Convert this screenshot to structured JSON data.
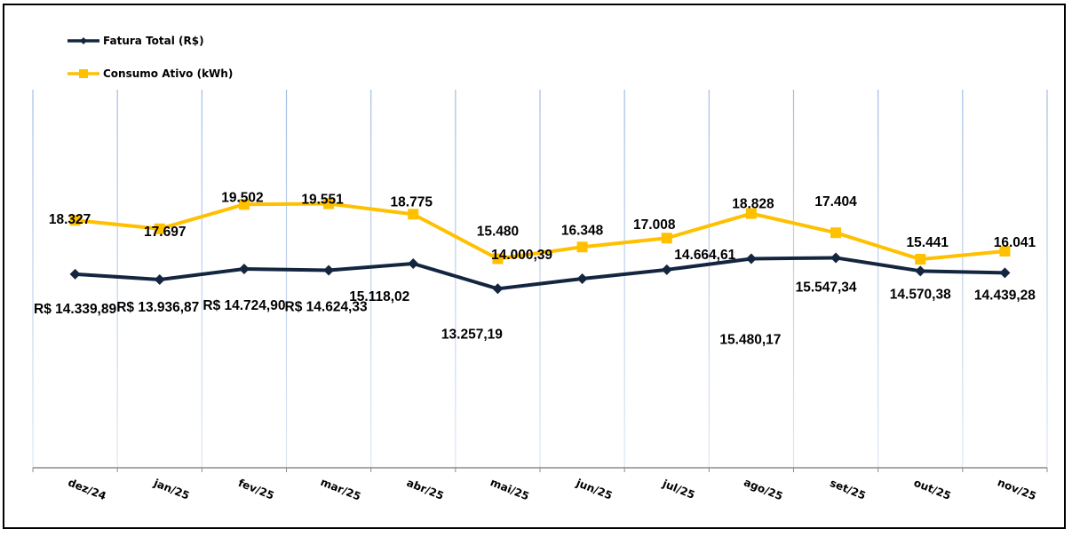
{
  "chart_data": {
    "type": "line",
    "title": "",
    "xlabel": "",
    "ylabel": "",
    "ylim": [
      0,
      28000
    ],
    "grid": "vertical",
    "legend_position": "top-left",
    "categories": [
      "dez/24",
      "jan/25",
      "fev/25",
      "mar/25",
      "abr/25",
      "mai/25",
      "jun/25",
      "jul/25",
      "ago/25",
      "set/25",
      "out/25",
      "nov/25"
    ],
    "series": [
      {
        "name": "Fatura Total (R$)",
        "color": "#14253f",
        "marker": "diamond",
        "values": [
          14339.89,
          13936.87,
          14724.9,
          14624.33,
          15118.02,
          13257.19,
          14000.39,
          14664.61,
          15480.17,
          15547.34,
          14570.38,
          14439.28
        ],
        "labels": [
          "R$ 14.339,89",
          "R$ 13.936,87",
          "R$ 14.724,90",
          "R$ 14.624,33",
          "15.118,02",
          "13.257,19",
          "14.000,39",
          "14.664,61",
          "15.480,17",
          "15.547,34",
          "14.570,38",
          "14.439,28"
        ]
      },
      {
        "name": "Consumo Ativo (kWh)",
        "color": "#ffc000",
        "marker": "square",
        "values": [
          18327,
          17697,
          19502,
          19551,
          18775,
          15480,
          16348,
          17008,
          18828,
          17404,
          15441,
          16041
        ],
        "labels": [
          "18.327",
          "17.697",
          "19.502",
          "19.551",
          "18.775",
          "15.480",
          "16.348",
          "17.008",
          "18.828",
          "17.404",
          "15.441",
          "16.041"
        ]
      }
    ]
  }
}
